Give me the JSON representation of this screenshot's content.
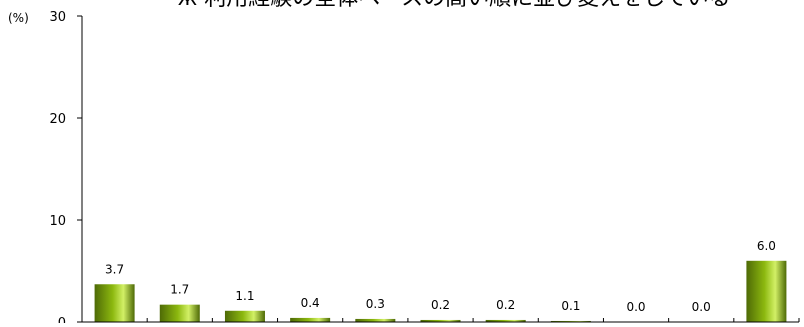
{
  "chart_data": {
    "type": "bar",
    "title": "ж 利用経験の全体ベースの高い順に並び変えをしている",
    "y_unit": "(%)",
    "ylim": [
      0,
      30
    ],
    "yticks": [
      0,
      10,
      20,
      30
    ],
    "ytick_labels": [
      "0",
      "10",
      "20",
      "30"
    ],
    "categories": [
      "",
      "",
      "",
      "",
      "",
      "",
      "",
      "",
      "",
      "",
      ""
    ],
    "values": [
      3.7,
      1.7,
      1.1,
      0.4,
      0.3,
      0.2,
      0.2,
      0.1,
      0.0,
      0.0,
      6.0
    ],
    "data_labels": [
      "3.7",
      "1.7",
      "1.1",
      "0.4",
      "0.3",
      "0.2",
      "0.2",
      "0.1",
      "0.0",
      "0.0",
      "6.0"
    ],
    "grid": false,
    "legend": "none",
    "colors": {
      "bar_dark": "#4e6a06",
      "bar_mid": "#8cb80f",
      "bar_light": "#d2f066",
      "axis": "#000000"
    }
  }
}
